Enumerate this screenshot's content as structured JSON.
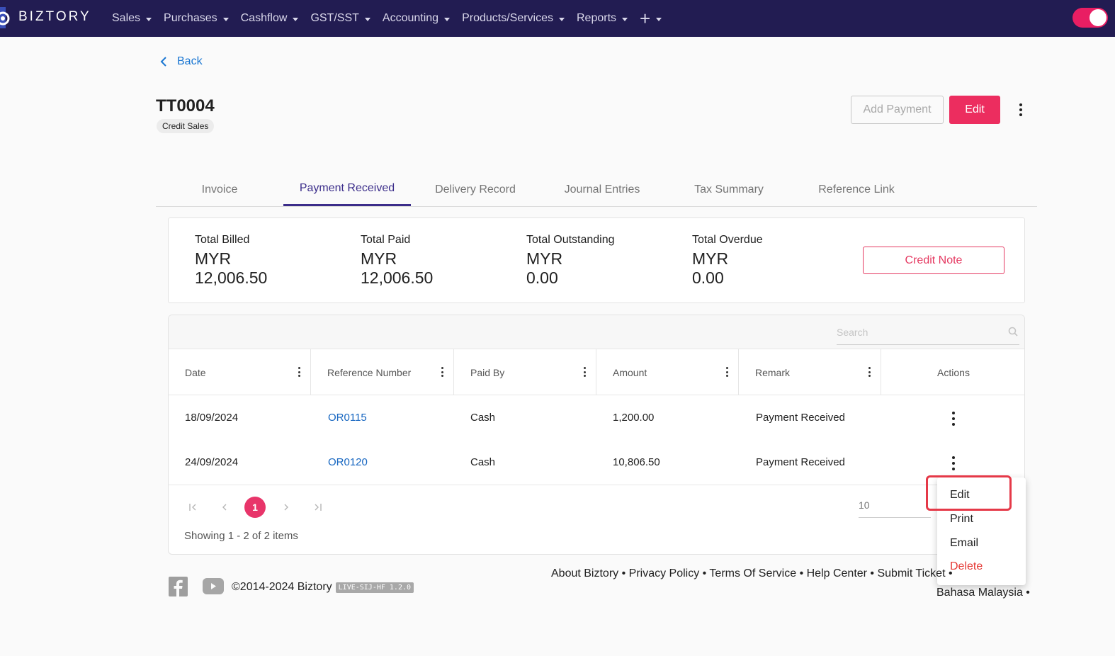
{
  "brand": {
    "name": "BIZTORY"
  },
  "nav": {
    "items": [
      {
        "label": "Sales"
      },
      {
        "label": "Purchases"
      },
      {
        "label": "Cashflow"
      },
      {
        "label": "GST/SST"
      },
      {
        "label": "Accounting"
      },
      {
        "label": "Products/Services"
      },
      {
        "label": "Reports"
      }
    ],
    "plus_label": "+",
    "toggle_on": true
  },
  "back_label": "Back",
  "document": {
    "number": "TT0004",
    "type_tag": "Credit Sales",
    "add_payment_label": "Add Payment",
    "edit_label": "Edit"
  },
  "tabs": [
    {
      "label": "Invoice",
      "active": false
    },
    {
      "label": "Payment Received",
      "active": true
    },
    {
      "label": "Delivery Record",
      "active": false
    },
    {
      "label": "Journal Entries",
      "active": false
    },
    {
      "label": "Tax Summary",
      "active": false
    },
    {
      "label": "Reference Link",
      "active": false
    }
  ],
  "summary": {
    "total_billed": {
      "label": "Total Billed",
      "currency": "MYR",
      "amount": "12,006.50"
    },
    "total_paid": {
      "label": "Total Paid",
      "currency": "MYR",
      "amount": "12,006.50"
    },
    "total_outstanding": {
      "label": "Total Outstanding",
      "currency": "MYR",
      "amount": "0.00"
    },
    "total_overdue": {
      "label": "Total Overdue",
      "currency": "MYR",
      "amount": "0.00"
    },
    "credit_note_label": "Credit Note"
  },
  "table": {
    "search_placeholder": "Search",
    "columns": [
      "Date",
      "Reference Number",
      "Paid By",
      "Amount",
      "Remark",
      "Actions"
    ],
    "rows": [
      {
        "date": "18/09/2024",
        "reference": "OR0115",
        "paid_by": "Cash",
        "amount": "1,200.00",
        "remark": "Payment Received"
      },
      {
        "date": "24/09/2024",
        "reference": "OR0120",
        "paid_by": "Cash",
        "amount": "10,806.50",
        "remark": "Payment Received"
      }
    ],
    "pager": {
      "current_page": "1",
      "page_size": "10",
      "showing": "Showing 1 - 2 of 2 items"
    }
  },
  "row_menu": {
    "items": [
      {
        "label": "Edit"
      },
      {
        "label": "Print"
      },
      {
        "label": "Email"
      },
      {
        "label": "Delete"
      }
    ]
  },
  "footer": {
    "copyright": "©2014-2024 Biztory",
    "version": "LIVE-SIJ-HF 1.2.0",
    "links": "About Biztory • Privacy Policy • Terms Of Service • Help Center • Submit Ticket •",
    "language": "Bahasa Malaysia •"
  },
  "colors": {
    "nav_bg": "#221c52",
    "accent_pink": "#ec2d5f",
    "tab_active": "#3b2d8a",
    "link_blue": "#1565c0"
  }
}
